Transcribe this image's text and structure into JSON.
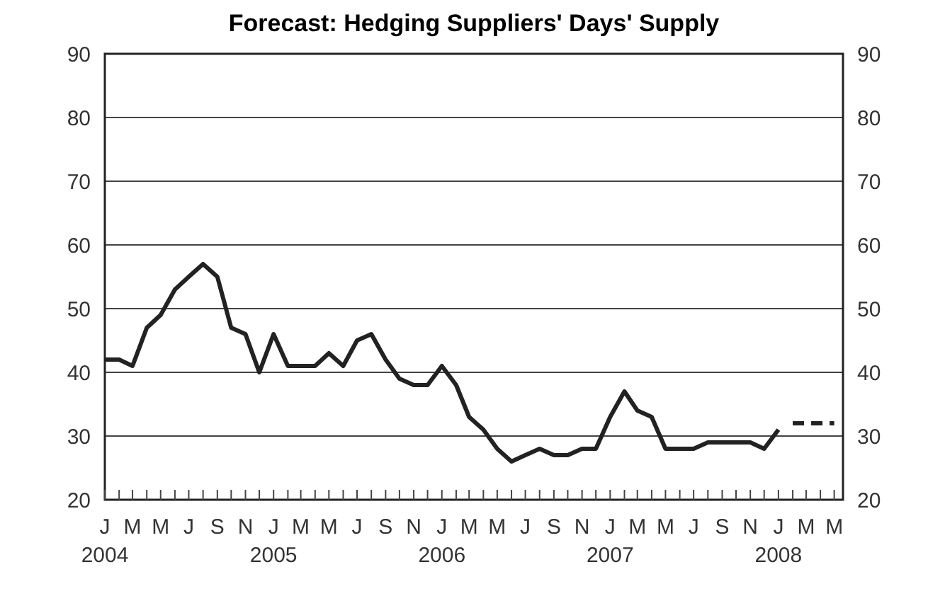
{
  "chart_data": {
    "type": "line",
    "title": "Forecast: Hedging Suppliers' Days' Supply",
    "xlim": [
      "2004-01",
      "2008-05-20"
    ],
    "xticks": [
      {
        "value": "2004-01",
        "label": "J\n2004"
      },
      {
        "value": "2004-02",
        "label": null
      },
      {
        "value": "2004-03",
        "label": "M"
      },
      {
        "value": "2004-04",
        "label": null
      },
      {
        "value": "2004-05",
        "label": "M"
      },
      {
        "value": "2004-06",
        "label": null
      },
      {
        "value": "2004-07",
        "label": "J"
      },
      {
        "value": "2004-08",
        "label": null
      },
      {
        "value": "2004-09",
        "label": "S"
      },
      {
        "value": "2004-10",
        "label": null
      },
      {
        "value": "2004-11",
        "label": "N"
      },
      {
        "value": "2004-12",
        "label": null
      },
      {
        "value": "2005-01",
        "label": "J\n2005"
      },
      {
        "value": "2005-02",
        "label": null
      },
      {
        "value": "2005-03",
        "label": "M"
      },
      {
        "value": "2005-04",
        "label": null
      },
      {
        "value": "2005-05",
        "label": "M"
      },
      {
        "value": "2005-06",
        "label": null
      },
      {
        "value": "2005-07",
        "label": "J"
      },
      {
        "value": "2005-08",
        "label": null
      },
      {
        "value": "2005-09",
        "label": "S"
      },
      {
        "value": "2005-10",
        "label": null
      },
      {
        "value": "2005-11",
        "label": "N"
      },
      {
        "value": "2005-12",
        "label": null
      },
      {
        "value": "2006-01",
        "label": "J\n2006"
      },
      {
        "value": "2006-02",
        "label": null
      },
      {
        "value": "2006-03",
        "label": "M"
      },
      {
        "value": "2006-04",
        "label": null
      },
      {
        "value": "2006-05",
        "label": "M"
      },
      {
        "value": "2006-06",
        "label": null
      },
      {
        "value": "2006-07",
        "label": "J"
      },
      {
        "value": "2006-08",
        "label": null
      },
      {
        "value": "2006-09",
        "label": "S"
      },
      {
        "value": "2006-10",
        "label": null
      },
      {
        "value": "2006-11",
        "label": "N"
      },
      {
        "value": "2006-12",
        "label": null
      },
      {
        "value": "2007-01",
        "label": "J\n2007"
      },
      {
        "value": "2007-02",
        "label": null
      },
      {
        "value": "2007-03",
        "label": "M"
      },
      {
        "value": "2007-04",
        "label": null
      },
      {
        "value": "2007-05",
        "label": "M"
      },
      {
        "value": "2007-06",
        "label": null
      },
      {
        "value": "2007-07",
        "label": "J"
      },
      {
        "value": "2007-08",
        "label": null
      },
      {
        "value": "2007-09",
        "label": "S"
      },
      {
        "value": "2007-10",
        "label": null
      },
      {
        "value": "2007-11",
        "label": "N"
      },
      {
        "value": "2007-12",
        "label": null
      },
      {
        "value": "2008-01",
        "label": "J\n2008"
      },
      {
        "value": "2008-02",
        "label": null
      },
      {
        "value": "2008-03",
        "label": "M"
      },
      {
        "value": "2008-04",
        "label": null
      },
      {
        "value": "2008-05",
        "label": "M"
      }
    ],
    "ylim": [
      20,
      90
    ],
    "yticks": [
      20,
      30,
      40,
      50,
      60,
      70,
      80,
      90
    ],
    "y2lim": [
      20,
      90
    ],
    "y2ticks": [
      20,
      30,
      40,
      50,
      60,
      70,
      80,
      90
    ],
    "grid": "y",
    "series": [
      {
        "color": "#222222",
        "line_style": "solid",
        "x": [
          "2004-01",
          "2004-02",
          "2004-03",
          "2004-04",
          "2004-05",
          "2004-06",
          "2004-07",
          "2004-08",
          "2004-09",
          "2004-10",
          "2004-11",
          "2004-12",
          "2005-01",
          "2005-02",
          "2005-03",
          "2005-04",
          "2005-05",
          "2005-06",
          "2005-07",
          "2005-08",
          "2005-09",
          "2005-10",
          "2005-11",
          "2005-12",
          "2006-01",
          "2006-02",
          "2006-03",
          "2006-04",
          "2006-05",
          "2006-06",
          "2006-07",
          "2006-08",
          "2006-09",
          "2006-10",
          "2006-11",
          "2006-12",
          "2007-01",
          "2007-02",
          "2007-03",
          "2007-04",
          "2007-05",
          "2007-06",
          "2007-07",
          "2007-08",
          "2007-09",
          "2007-10",
          "2007-11",
          "2007-12",
          "2008-01"
        ],
        "values": [
          42,
          42,
          41,
          47,
          49,
          53,
          55,
          57,
          55,
          47,
          46,
          40,
          46,
          41,
          41,
          41,
          43,
          41,
          45,
          46,
          42,
          39,
          38,
          38,
          41,
          38,
          33,
          31,
          28,
          26,
          27,
          28,
          27,
          27,
          28,
          28,
          33,
          37,
          34,
          33,
          28,
          28,
          28,
          29,
          29,
          29,
          29,
          28,
          31
        ]
      },
      {
        "color": "#222222",
        "line_style": "dashed",
        "x": [
          "2008-02",
          "2008-03",
          "2008-04",
          "2008-05"
        ],
        "values": [
          32,
          32,
          32,
          32
        ]
      }
    ]
  }
}
